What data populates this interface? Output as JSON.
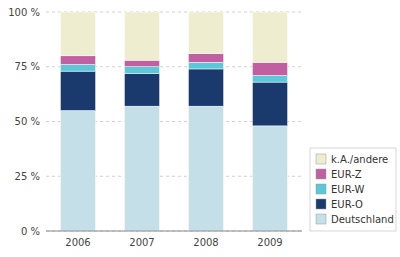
{
  "chart_data": {
    "type": "bar",
    "stacked": true,
    "categories": [
      "2006",
      "2007",
      "2008",
      "2009"
    ],
    "series": [
      {
        "name": "Deutschland",
        "color": "#c5dfe8",
        "values": [
          55,
          57,
          57,
          48
        ]
      },
      {
        "name": "EUR-O",
        "color": "#1a3a6e",
        "values": [
          18,
          15,
          17,
          20
        ]
      },
      {
        "name": "EUR-W",
        "color": "#5bc8d8",
        "values": [
          3,
          3,
          3,
          3
        ]
      },
      {
        "name": "EUR-Z",
        "color": "#c060a0",
        "values": [
          4,
          3,
          4,
          6
        ]
      },
      {
        "name": "k.A./andere",
        "color": "#eeedd0",
        "values": [
          20,
          22,
          19,
          23
        ]
      }
    ],
    "ylim": [
      0,
      100
    ],
    "yticks": [
      {
        "value": 0,
        "label": "0 %"
      },
      {
        "value": 25,
        "label": "25 %"
      },
      {
        "value": 50,
        "label": "50 %"
      },
      {
        "value": 75,
        "label": "75 %"
      },
      {
        "value": 100,
        "label": "100 %"
      }
    ],
    "grid": true,
    "legend": "lower right"
  }
}
